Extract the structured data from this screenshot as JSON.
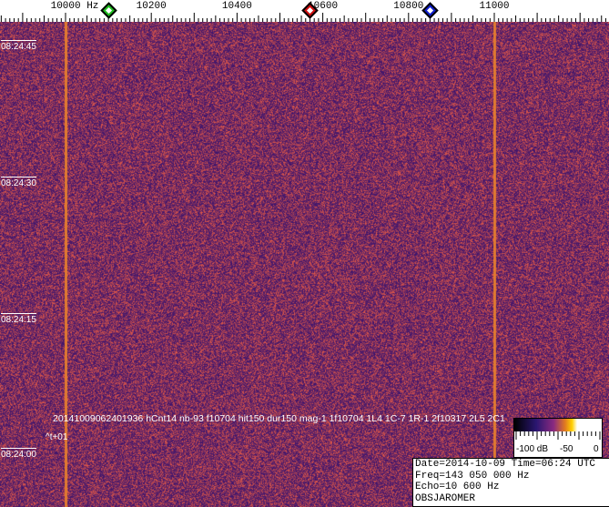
{
  "freq_axis": {
    "labels": [
      {
        "text": "10000 Hz",
        "hz": 10000
      },
      {
        "text": "10200",
        "hz": 10200
      },
      {
        "text": "10400",
        "hz": 10400
      },
      {
        "text": "10600",
        "hz": 10600
      },
      {
        "text": "10800",
        "hz": 10800
      },
      {
        "text": "11000",
        "hz": 11000
      }
    ],
    "markers": [
      {
        "name": "green-marker",
        "hz": 10100,
        "color": "#20c020"
      },
      {
        "name": "red-marker",
        "hz": 10570,
        "color": "#d01010"
      },
      {
        "name": "blue-marker",
        "hz": 10850,
        "color": "#1020d0"
      }
    ]
  },
  "time_axis": [
    "08:24:45",
    "08:24:30",
    "08:24:15",
    "08:24:00"
  ],
  "carrier_lines_hz": [
    10000,
    11000
  ],
  "detection_text": "20141009062401936 hCnt14 nb-93 f10704 hit150 dur150 mag-1 1f10704 1L4 1C-7 1R-1 2f10317 2L5 2C1",
  "time_offset": "^t+01",
  "colorbar": {
    "labels": [
      "-100 dB",
      "-50",
      "0"
    ]
  },
  "info_box": {
    "date_line": "Date=2014-10-09 Time=06:24 UTC",
    "freq_line": "Freq=143 050 000 Hz",
    "echo_line": "Echo=10 600 Hz",
    "observer": "OBSJAROMER"
  }
}
